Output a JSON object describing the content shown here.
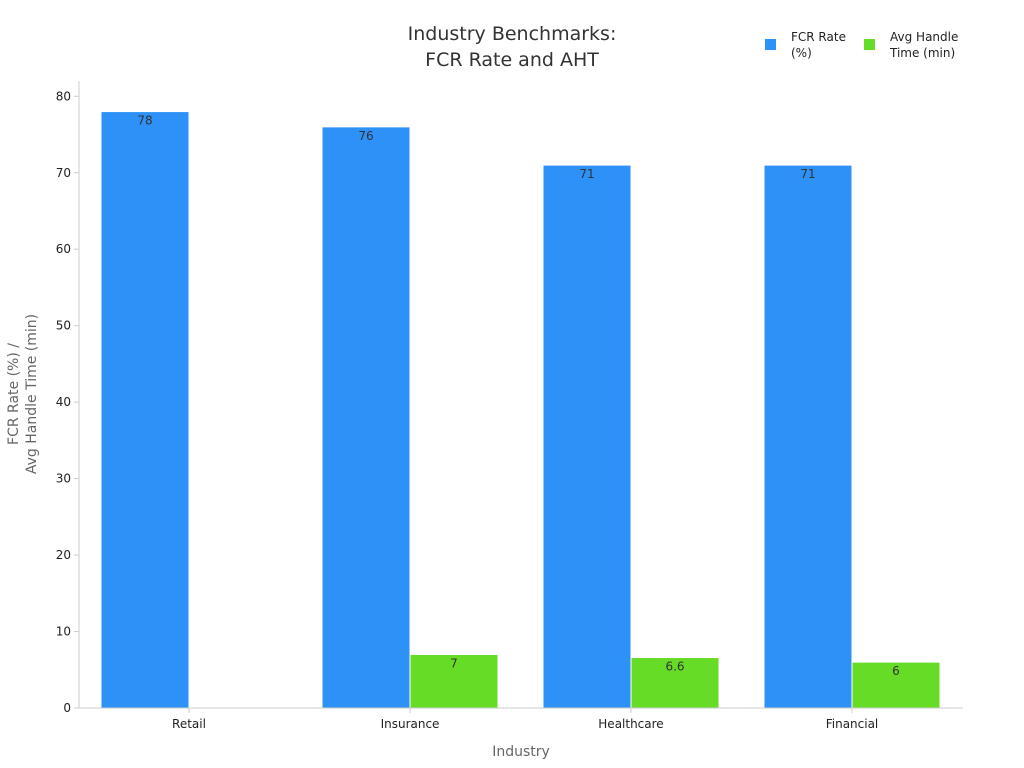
{
  "chart_data": {
    "type": "bar",
    "title": [
      "Industry Benchmarks:",
      "FCR Rate and AHT"
    ],
    "xlabel": "Industry",
    "ylabel": [
      "FCR Rate (%) /",
      "Avg Handle Time (min)"
    ],
    "categories": [
      "Retail",
      "Insurance",
      "Healthcare",
      "Financial"
    ],
    "ylim": [
      0,
      82
    ],
    "yticks": [
      0,
      10,
      20,
      30,
      40,
      50,
      60,
      70,
      80
    ],
    "grid": false,
    "legend_position": "top-right",
    "series": [
      {
        "name": [
          "FCR Rate",
          "(%)"
        ],
        "color": "#2d91f7",
        "values": [
          78,
          76,
          71,
          71
        ],
        "labels": [
          "78",
          "76",
          "71",
          "71"
        ]
      },
      {
        "name": [
          "Avg Handle",
          "Time (min)"
        ],
        "color": "#67dc27",
        "values": [
          null,
          7,
          6.6,
          6
        ],
        "labels": [
          "",
          "7",
          "6.6",
          "6"
        ]
      }
    ]
  }
}
